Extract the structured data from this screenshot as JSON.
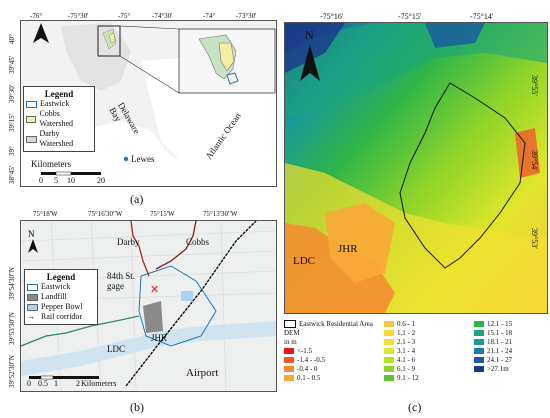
{
  "panel_a": {
    "lon_ticks": [
      "-76°",
      "-75°30'",
      "-75°",
      "-74°30'",
      "-74°",
      "-73°30'"
    ],
    "lat_ticks": [
      "40°",
      "39°45'",
      "39°30'",
      "39°15'",
      "39°",
      "38°45'"
    ],
    "legend_title": "Legend",
    "legend_items": [
      {
        "label": "Eastwick",
        "color": "#ffffff",
        "border": "#1f77b4"
      },
      {
        "label": "Cobbs Watershed",
        "color": "#f5eea0",
        "border": "#999999"
      },
      {
        "label": "Darby Watershed",
        "color": "#c9e3c2",
        "border": "#999999"
      }
    ],
    "delaware_bay": "Delaware Bay",
    "atlantic_ocean": "Atlantic Ocean",
    "lewes": "Lewes",
    "scale_labels": [
      "0",
      "5",
      "10",
      "20"
    ],
    "scale_unit": "Kilometers",
    "north": "N"
  },
  "panel_b": {
    "lon_ticks": [
      "75°18'W",
      "75°16'30\"W",
      "75°15'W",
      "75°13'30\"W"
    ],
    "lat_ticks": [
      "39°54'30\"N",
      "39°53'30\"N",
      "39°52'30\"N"
    ],
    "legend_title": "Legend",
    "legend_items": [
      {
        "label": "Eastwick",
        "color": "#ffffff",
        "border": "#1f77b4"
      },
      {
        "label": "Landfill",
        "color": "#8a8a8a",
        "border": "#555555"
      },
      {
        "label": "Pepper Bowl",
        "color": "#a9d4f5",
        "border": "#7aaed6"
      },
      {
        "label": "Rail corridor",
        "color": "",
        "border": "#000000"
      }
    ],
    "labels": {
      "darby": "Darby",
      "cobbs": "Cobbs",
      "gage": "84th St. gage",
      "ldc": "LDC",
      "jhr": "JHR",
      "airport": "Airport"
    },
    "scale_labels": [
      "0",
      "0.5",
      "1",
      "2"
    ],
    "scale_unit": "Kilometers",
    "north": "N"
  },
  "panel_c": {
    "lon_ticks": [
      "-75°16'",
      "-75°15'",
      "-75°14'"
    ],
    "lat_ticks": [
      "39°55'",
      "39°54'",
      "39°53'"
    ],
    "labels": {
      "ldc": "LDC",
      "jhr": "JHR"
    },
    "north": "N",
    "legend_header": "Eastwick Residential Area",
    "dem_title": "DEM",
    "dem_unit": "in m",
    "dem_classes": [
      {
        "label": "<-1.5",
        "color": "#e31a1c"
      },
      {
        "label": "-1.4 - -0.5",
        "color": "#ef5a2a"
      },
      {
        "label": "-0.4 - 0",
        "color": "#f58a30"
      },
      {
        "label": "0.1 - 0.5",
        "color": "#f8a83a"
      },
      {
        "label": "0.6 - 1",
        "color": "#fbc33f"
      },
      {
        "label": "1.1 - 2",
        "color": "#fdd835"
      },
      {
        "label": "2.1 - 3",
        "color": "#f4e030"
      },
      {
        "label": "3.1 - 4",
        "color": "#dfe62a"
      },
      {
        "label": "4.1 - 6",
        "color": "#b9e023"
      },
      {
        "label": "6.1 - 9",
        "color": "#8fd42a"
      },
      {
        "label": "9.1 - 12",
        "color": "#5cc531"
      },
      {
        "label": "12.1 - 15",
        "color": "#2fb547"
      },
      {
        "label": "15.1 - 18",
        "color": "#1da67a"
      },
      {
        "label": "18.1 - 21",
        "color": "#1a9a9a"
      },
      {
        "label": "21.1 - 24",
        "color": "#1a7fa8"
      },
      {
        "label": "24.1 - 27",
        "color": "#1d5aa0"
      },
      {
        "label": ">27.1m",
        "color": "#1a3a8a"
      }
    ]
  },
  "captions": {
    "a": "(a)",
    "b": "(b)",
    "c": "(c)"
  }
}
